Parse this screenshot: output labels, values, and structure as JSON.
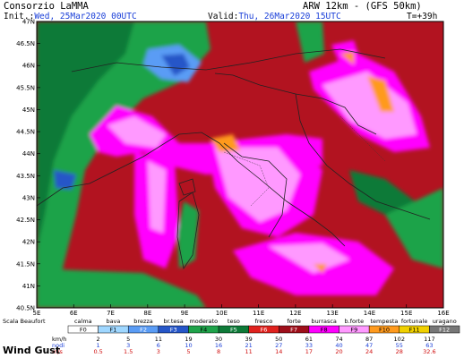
{
  "header": {
    "org": "Consorzio LaMMA",
    "model": "ARW 12km - (GFS 50km)",
    "init_label": "Init.:",
    "init_value": "Wed, 25Mar2020 00UTC",
    "valid_label": "Valid:",
    "valid_value": "Thu, 26Mar2020 15UTC",
    "lead": "T=+39h"
  },
  "axes": {
    "lat_labels": [
      "47N",
      "46.5N",
      "46N",
      "45.5N",
      "45N",
      "44.5N",
      "44N",
      "43.5N",
      "43N",
      "42.5N",
      "42N",
      "41.5N",
      "41N",
      "40.5N"
    ],
    "lon_labels": [
      "5E",
      "6E",
      "7E",
      "8E",
      "9E",
      "10E",
      "11E",
      "12E",
      "13E",
      "14E",
      "15E",
      "16E"
    ]
  },
  "legend": {
    "scale_title": "Scala Beaufort",
    "names": [
      "calma",
      "bava",
      "brezza",
      "br.tesa",
      "moderato",
      "teso",
      "fresco",
      "forte",
      "burrasca",
      "b.forte",
      "tempesta",
      "fortunale",
      "uragano"
    ],
    "codes": [
      "F0",
      "F1",
      "F2",
      "F3",
      "F4",
      "F5",
      "F6",
      "F7",
      "F8",
      "F9",
      "F10",
      "F11",
      "F12"
    ],
    "colors": [
      "#ffffff",
      "#9fd7ff",
      "#5a9cf5",
      "#2656c8",
      "#1fa34a",
      "#0e7a38",
      "#e0221e",
      "#9e0f1a",
      "#ff00ff",
      "#ff99ff",
      "#ff9a1e",
      "#f0d000",
      "#777777"
    ],
    "kmh_label": "km/h",
    "kmh": [
      "2",
      "5",
      "11",
      "19",
      "30",
      "39",
      "50",
      "61",
      "74",
      "87",
      "102",
      "117"
    ],
    "nodi_label": "nodi",
    "nodi": [
      "1",
      "3",
      "6",
      "10",
      "16",
      "21",
      "27",
      "33",
      "40",
      "47",
      "55",
      "63"
    ],
    "ms_label": "m/s",
    "ms": [
      "0.5",
      "1.5",
      "3",
      "5",
      "8",
      "11",
      "14",
      "17",
      "20",
      "24",
      "28",
      "32.6"
    ]
  },
  "footer_label": "Wind Gust"
}
